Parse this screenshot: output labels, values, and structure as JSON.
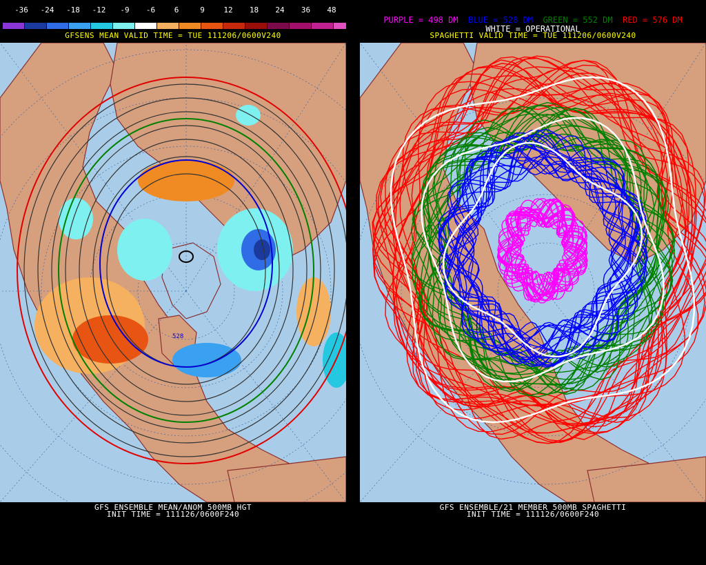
{
  "left": {
    "scale_ticks": [
      "-36",
      "-24",
      "-18",
      "-12",
      "-9",
      "-6",
      "6",
      "9",
      "12",
      "18",
      "24",
      "36",
      "48"
    ],
    "scale_colors": [
      "#8b36d6",
      "#1a3a9e",
      "#2f6ce6",
      "#3aa0f0",
      "#24c8e0",
      "#7ef0f0",
      "#ffffff",
      "#f5b060",
      "#f08a22",
      "#e85412",
      "#c8280c",
      "#9a0e0a",
      "#7a0a4a",
      "#a0106a",
      "#c02090",
      "#e050c0"
    ],
    "valid_time": "GFSENS MEAN VALID TIME = TUE 111206/0600V240",
    "footer_line1": "GFS ENSEMBLE MEAN/ANOM 500MB HGT",
    "footer_line2": "INIT TIME = 111126/0600F240",
    "contour_label": "528"
  },
  "right": {
    "legend": [
      {
        "text": "PURPLE = 498 DM",
        "color": "#ff00ff"
      },
      {
        "text": "BLUE = 528 DM",
        "color": "#0000ff"
      },
      {
        "text": "GREEN = 552 DM",
        "color": "#008000"
      },
      {
        "text": "RED = 576 DM",
        "color": "#ff0000"
      }
    ],
    "white_label": "WHITE = OPERATIONAL",
    "valid_time": "SPAGHETTI VALID TIME = TUE 111206/0600V240",
    "footer_line1": "GFS ENSEMBLE/21 MEMBER 500MB SPAGHETTI",
    "footer_line2": "INIT TIME = 111126/0600F240"
  },
  "colors": {
    "ocean": "#a9cde8",
    "land": "#d69f7e",
    "coast": "#8b2f2f"
  }
}
